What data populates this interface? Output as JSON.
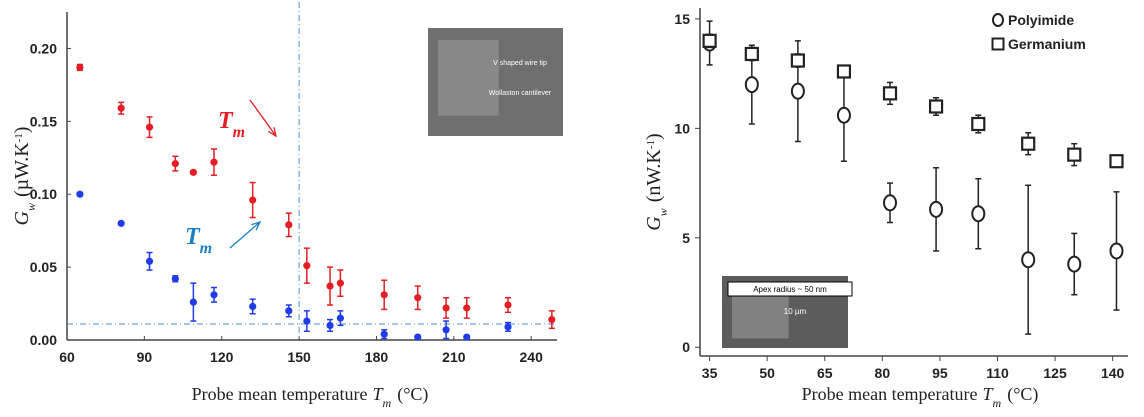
{
  "chart_data": [
    {
      "type": "scatter",
      "xlabel": {
        "text": "Probe mean temperature",
        "symbol": "T",
        "sub": "m",
        "unit": "(°C)"
      },
      "ylabel": {
        "symbol": "G",
        "sub": "w",
        "unit": "(µW.K",
        "sup": "-1",
        "unit_end": ")"
      },
      "xlim": [
        60,
        250
      ],
      "ylim": [
        0,
        0.225
      ],
      "xticks": [
        60,
        90,
        120,
        150,
        180,
        210,
        240
      ],
      "yticks": [
        {
          "value": 0,
          "label": "0.00"
        },
        0.05,
        {
          "value": 0.1,
          "label": "0.10"
        },
        0.15,
        {
          "value": 0.2,
          "label": "0.20"
        }
      ],
      "grid": false,
      "vline": 150,
      "hline": 0.011,
      "ref_color": "#4a8fd0",
      "series": [
        {
          "color": "#e31e24",
          "marker": "circle-filled",
          "x": [
            65,
            81,
            92,
            102,
            109,
            117,
            132,
            146,
            153,
            162,
            166,
            183,
            196,
            207,
            215,
            231,
            248
          ],
          "values": [
            0.187,
            0.159,
            0.146,
            0.121,
            0.115,
            0.122,
            0.096,
            0.079,
            0.051,
            0.037,
            0.039,
            0.031,
            0.029,
            0.022,
            0.022,
            0.024,
            0.014
          ],
          "errors": [
            0.002,
            0.004,
            0.007,
            0.005,
            0.001,
            0.009,
            0.012,
            0.008,
            0.012,
            0.013,
            0.009,
            0.01,
            0.008,
            0.007,
            0.007,
            0.005,
            0.006
          ]
        },
        {
          "color": "#1f3ce6",
          "marker": "circle-filled",
          "x": [
            65,
            81,
            92,
            102,
            109,
            117,
            132,
            146,
            153,
            162,
            166,
            183,
            196,
            207,
            215,
            231
          ],
          "values": [
            0.1,
            0.08,
            0.054,
            0.042,
            0.026,
            0.031,
            0.023,
            0.02,
            0.013,
            0.01,
            0.015,
            0.004,
            0.002,
            0.007,
            0.002,
            0.009
          ],
          "errors": [
            0.001,
            0.001,
            0.006,
            0.002,
            0.013,
            0.005,
            0.005,
            0.004,
            0.007,
            0.004,
            0.005,
            0.003,
            0.001,
            0.006,
            0.001,
            0.003
          ]
        }
      ],
      "annotations": [
        {
          "symbol": "T",
          "sub": "m",
          "color": "#e31e24"
        },
        {
          "symbol": "T",
          "sub": "m",
          "color": "#1a7fc0"
        }
      ],
      "inset_labels": [
        "V shaped wire tip",
        "Wollaston cantilever"
      ]
    },
    {
      "type": "scatter",
      "xlabel": {
        "text": "Probe mean temperature",
        "symbol": "T",
        "sub": "m",
        "unit": "(°C)"
      },
      "ylabel": {
        "symbol": "G",
        "sub": "w",
        "unit": "(nW.K",
        "sup": "-1",
        "unit_end": ")"
      },
      "xlim": [
        32.5,
        144
      ],
      "ylim": [
        -0.4,
        15.5
      ],
      "xticks": [
        35,
        50,
        65,
        80,
        95,
        110,
        125,
        140
      ],
      "yticks": [
        0,
        5,
        10,
        15
      ],
      "grid": false,
      "legend": "upper right",
      "series": [
        {
          "name": "Polyimide",
          "color": "#222222",
          "marker": "circle-open",
          "x": [
            35,
            46,
            58,
            70,
            82,
            94,
            105,
            118,
            130,
            141
          ],
          "values": [
            13.9,
            12.0,
            11.7,
            10.6,
            6.6,
            6.3,
            6.1,
            4.0,
            3.8,
            4.4
          ],
          "errors": [
            1.0,
            1.8,
            2.3,
            2.1,
            0.9,
            1.9,
            1.6,
            3.4,
            1.4,
            2.7
          ]
        },
        {
          "name": "Germanium",
          "color": "#222222",
          "marker": "square-open",
          "x": [
            35,
            46,
            58,
            70,
            82,
            94,
            105,
            118,
            130,
            141
          ],
          "values": [
            14.0,
            13.4,
            13.1,
            12.6,
            11.6,
            11.0,
            10.2,
            9.3,
            8.8,
            8.5
          ],
          "errors": [
            0.3,
            0.3,
            0.3,
            0.2,
            0.5,
            0.4,
            0.4,
            0.5,
            0.5,
            0.2
          ]
        }
      ],
      "inset_labels": [
        "Apex radius ~ 50 nm",
        "10 µm"
      ]
    }
  ]
}
